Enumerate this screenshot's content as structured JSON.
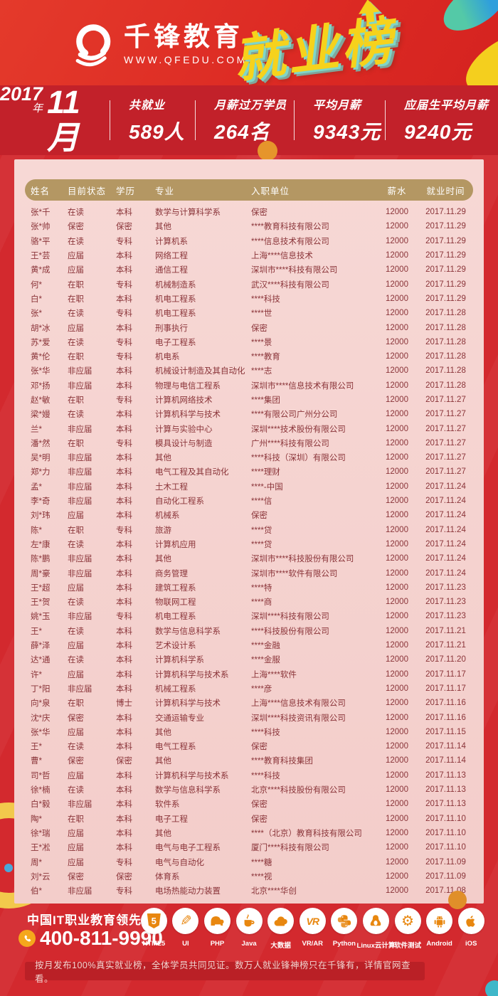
{
  "header": {
    "brand_name": "千锋教育",
    "brand_url": "WWW.QFEDU.COM",
    "title": "就业榜"
  },
  "stats_bar": {
    "year": "2017",
    "year_suffix": "年",
    "month": "11月",
    "stats": [
      {
        "label": "共就业",
        "value": "589人"
      },
      {
        "label": "月薪过万学员",
        "value": "264名"
      },
      {
        "label": "平均月薪",
        "value": "9343元"
      },
      {
        "label": "应届生平均月薪",
        "value": "9240元"
      }
    ]
  },
  "table": {
    "columns": [
      "姓名",
      "目前状态",
      "学历",
      "专业",
      "入职单位",
      "薪水",
      "就业时间"
    ],
    "rows": [
      [
        "张*千",
        "在读",
        "本科",
        "数学与计算科学系",
        "保密",
        "12000",
        "2017.11.29"
      ],
      [
        "张*帅",
        "保密",
        "保密",
        "其他",
        "****教育科技有限公司",
        "12000",
        "2017.11.29"
      ],
      [
        "骆*平",
        "在读",
        "专科",
        "计算机系",
        "****信息技术有限公司",
        "12000",
        "2017.11.29"
      ],
      [
        "王*芸",
        "应届",
        "本科",
        "网络工程",
        "上海****信息技术",
        "12000",
        "2017.11.29"
      ],
      [
        "黄*成",
        "应届",
        "本科",
        "通信工程",
        "深圳市****科技有限公司",
        "12000",
        "2017.11.29"
      ],
      [
        "何*",
        "在职",
        "专科",
        "机械制造系",
        "武汉****科技有限公司",
        "12000",
        "2017.11.29"
      ],
      [
        "白*",
        "在职",
        "本科",
        "机电工程系",
        "****科技",
        "12000",
        "2017.11.29"
      ],
      [
        "张*",
        "在读",
        "专科",
        "机电工程系",
        "****世",
        "12000",
        "2017.11.28"
      ],
      [
        "胡*冰",
        "应届",
        "本科",
        "刑事执行",
        "保密",
        "12000",
        "2017.11.28"
      ],
      [
        "苏*爱",
        "在读",
        "专科",
        "电子工程系",
        "****景",
        "12000",
        "2017.11.28"
      ],
      [
        "黄*伦",
        "在职",
        "专科",
        "机电系",
        "****教育",
        "12000",
        "2017.11.28"
      ],
      [
        "张*华",
        "非应届",
        "本科",
        "机械设计制造及其自动化",
        "****志",
        "12000",
        "2017.11.28"
      ],
      [
        "邓*扬",
        "非应届",
        "本科",
        "物理与电信工程系",
        "深圳市****信息技术有限公司",
        "12000",
        "2017.11.28"
      ],
      [
        "赵*敏",
        "在职",
        "专科",
        "计算机网络技术",
        "****集团",
        "12000",
        "2017.11.27"
      ],
      [
        "梁*嫚",
        "在读",
        "本科",
        "计算机科学与技术",
        "****有限公司广州分公司",
        "12000",
        "2017.11.27"
      ],
      [
        "兰*",
        "非应届",
        "本科",
        "计算与实验中心",
        "深圳****技术股份有限公司",
        "12000",
        "2017.11.27"
      ],
      [
        "潘*然",
        "在职",
        "专科",
        "模具设计与制造",
        "广州****科技有限公司",
        "12000",
        "2017.11.27"
      ],
      [
        "吴*明",
        "非应届",
        "本科",
        "其他",
        "****科技（深圳）有限公司",
        "12000",
        "2017.11.27"
      ],
      [
        "郑*力",
        "非应届",
        "本科",
        "电气工程及其自动化",
        "****理财",
        "12000",
        "2017.11.27"
      ],
      [
        "孟*",
        "非应届",
        "本科",
        "土木工程",
        "****-中国",
        "12000",
        "2017.11.24"
      ],
      [
        "李*奇",
        "非应届",
        "本科",
        "自动化工程系",
        "****信",
        "12000",
        "2017.11.24"
      ],
      [
        "刘*玮",
        "应届",
        "本科",
        "机械系",
        "保密",
        "12000",
        "2017.11.24"
      ],
      [
        "陈*",
        "在职",
        "专科",
        "旅游",
        "****贷",
        "12000",
        "2017.11.24"
      ],
      [
        "左*康",
        "在读",
        "本科",
        "计算机应用",
        "****贷",
        "12000",
        "2017.11.24"
      ],
      [
        "陈*鹏",
        "非应届",
        "本科",
        "其他",
        "深圳市****科技股份有限公司",
        "12000",
        "2017.11.24"
      ],
      [
        "周*豪",
        "非应届",
        "本科",
        "商务管理",
        "深圳市****软件有限公司",
        "12000",
        "2017.11.24"
      ],
      [
        "王*超",
        "应届",
        "本科",
        "建筑工程系",
        "****特",
        "12000",
        "2017.11.23"
      ],
      [
        "王*贺",
        "在读",
        "本科",
        "物联网工程",
        "****商",
        "12000",
        "2017.11.23"
      ],
      [
        "姚*玉",
        "非应届",
        "专科",
        "机电工程系",
        "深圳****科技有限公司",
        "12000",
        "2017.11.23"
      ],
      [
        "王*",
        "在读",
        "本科",
        "数学与信息科学系",
        "****科技股份有限公司",
        "12000",
        "2017.11.21"
      ],
      [
        "薛*泽",
        "应届",
        "本科",
        "艺术设计系",
        "****金融",
        "12000",
        "2017.11.21"
      ],
      [
        "达*通",
        "在读",
        "本科",
        "计算机科学系",
        "****金服",
        "12000",
        "2017.11.20"
      ],
      [
        "许*",
        "应届",
        "本科",
        "计算机科学与技术系",
        "上海****软件",
        "12000",
        "2017.11.17"
      ],
      [
        "丁*阳",
        "非应届",
        "本科",
        "机械工程系",
        "****彦",
        "12000",
        "2017.11.17"
      ],
      [
        "向*泉",
        "在职",
        "博士",
        "计算机科学与技术",
        "上海****信息技术有限公司",
        "12000",
        "2017.11.16"
      ],
      [
        "沈*庆",
        "保密",
        "本科",
        "交通运输专业",
        "深圳****科技资讯有限公司",
        "12000",
        "2017.11.16"
      ],
      [
        "张*华",
        "应届",
        "本科",
        "其他",
        "****科技",
        "12000",
        "2017.11.15"
      ],
      [
        "王*",
        "在读",
        "本科",
        "电气工程系",
        "保密",
        "12000",
        "2017.11.14"
      ],
      [
        "曹*",
        "保密",
        "保密",
        "其他",
        "****教育科技集团",
        "12000",
        "2017.11.14"
      ],
      [
        "司*哲",
        "应届",
        "本科",
        "计算机科学与技术系",
        "****科技",
        "12000",
        "2017.11.13"
      ],
      [
        "徐*楠",
        "在读",
        "本科",
        "数学与信息科学系",
        "北京****科技股份有限公司",
        "12000",
        "2017.11.13"
      ],
      [
        "白*毅",
        "非应届",
        "本科",
        "软件系",
        "保密",
        "12000",
        "2017.11.13"
      ],
      [
        "陶*",
        "在职",
        "本科",
        "电子工程",
        "保密",
        "12000",
        "2017.11.10"
      ],
      [
        "徐*瑞",
        "应届",
        "本科",
        "其他",
        "****（北京）教育科技有限公司",
        "12000",
        "2017.11.10"
      ],
      [
        "王*凇",
        "应届",
        "本科",
        "电气与电子工程系",
        "厦门****科技有限公司",
        "12000",
        "2017.11.10"
      ],
      [
        "周*",
        "应届",
        "专科",
        "电气与自动化",
        "****糖",
        "12000",
        "2017.11.09"
      ],
      [
        "刘*云",
        "保密",
        "保密",
        "体育系",
        "****视",
        "12000",
        "2017.11.09"
      ],
      [
        "伯*",
        "非应届",
        "专科",
        "电场热能动力装置",
        "北京****华创",
        "12000",
        "2017.11.08"
      ]
    ]
  },
  "footer": {
    "brand_slogan": "中国IT职业教育领先品牌",
    "phone": "400-811-9990",
    "courses": [
      {
        "icon": "html5-icon",
        "label": "HTML5"
      },
      {
        "icon": "ui-icon",
        "label": "UI"
      },
      {
        "icon": "php-icon",
        "label": "PHP"
      },
      {
        "icon": "java-icon",
        "label": "Java"
      },
      {
        "icon": "bigdata-icon",
        "label": "大数据"
      },
      {
        "icon": "vrar-icon",
        "label": "VR/AR"
      },
      {
        "icon": "python-icon",
        "label": "Python"
      },
      {
        "icon": "linux-icon",
        "label": "Linux云计算"
      },
      {
        "icon": "testing-icon",
        "label": "软件测试"
      },
      {
        "icon": "android-icon",
        "label": "Android"
      },
      {
        "icon": "ios-icon",
        "label": "iOS"
      }
    ],
    "disclaimer": "按月发布100%真实就业榜，全体学员共同见证。数万人就业锋神榜只在千锋有，详情官网查看。"
  },
  "colors": {
    "body_red": "#d3292e",
    "band_red": "#c2212a",
    "panel_pink": "#f4cfcc",
    "header_gold": "#b49763",
    "table_text": "#8a3439",
    "title_yellow": "#f6d21c",
    "title_shadow_teal": "#7fd6c8",
    "icon_orange": "#e8870f"
  }
}
